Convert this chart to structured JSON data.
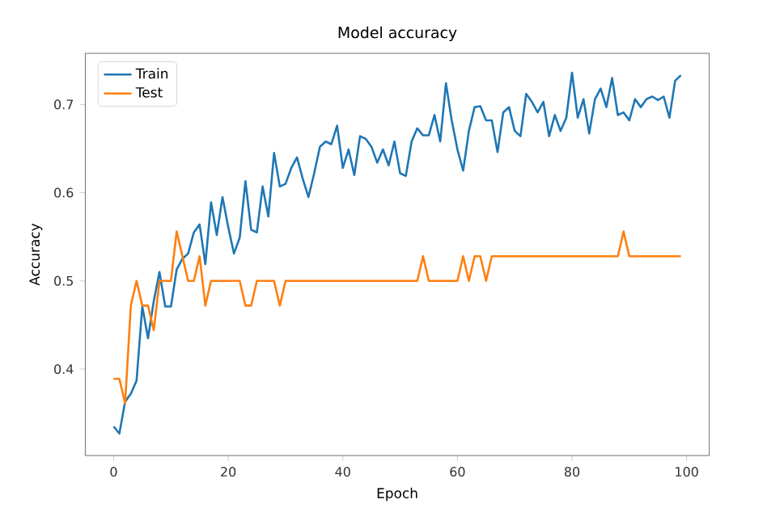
{
  "chart_data": {
    "type": "line",
    "title": "Model accuracy",
    "xlabel": "Epoch",
    "ylabel": "Accuracy",
    "x": [
      0,
      1,
      2,
      3,
      4,
      5,
      6,
      7,
      8,
      9,
      10,
      11,
      12,
      13,
      14,
      15,
      16,
      17,
      18,
      19,
      20,
      21,
      22,
      23,
      24,
      25,
      26,
      27,
      28,
      29,
      30,
      31,
      32,
      33,
      34,
      35,
      36,
      37,
      38,
      39,
      40,
      41,
      42,
      43,
      44,
      45,
      46,
      47,
      48,
      49,
      50,
      51,
      52,
      53,
      54,
      55,
      56,
      57,
      58,
      59,
      60,
      61,
      62,
      63,
      64,
      65,
      66,
      67,
      68,
      69,
      70,
      71,
      72,
      73,
      74,
      75,
      76,
      77,
      78,
      79,
      80,
      81,
      82,
      83,
      84,
      85,
      86,
      87,
      88,
      89,
      90,
      91,
      92,
      93,
      94,
      95,
      96,
      97,
      98,
      99
    ],
    "series": [
      {
        "name": "Train",
        "color": "#1f77b4",
        "values": [
          0.335,
          0.327,
          0.363,
          0.372,
          0.387,
          0.471,
          0.435,
          0.477,
          0.51,
          0.471,
          0.471,
          0.513,
          0.525,
          0.531,
          0.555,
          0.564,
          0.519,
          0.589,
          0.552,
          0.595,
          0.561,
          0.531,
          0.549,
          0.613,
          0.558,
          0.555,
          0.607,
          0.573,
          0.645,
          0.607,
          0.61,
          0.628,
          0.64,
          0.616,
          0.595,
          0.622,
          0.652,
          0.658,
          0.655,
          0.676,
          0.628,
          0.649,
          0.62,
          0.664,
          0.661,
          0.652,
          0.634,
          0.649,
          0.631,
          0.658,
          0.622,
          0.619,
          0.658,
          0.673,
          0.665,
          0.665,
          0.688,
          0.658,
          0.724,
          0.682,
          0.649,
          0.625,
          0.67,
          0.697,
          0.698,
          0.682,
          0.682,
          0.646,
          0.691,
          0.697,
          0.67,
          0.664,
          0.712,
          0.703,
          0.691,
          0.703,
          0.664,
          0.688,
          0.67,
          0.685,
          0.736,
          0.685,
          0.706,
          0.667,
          0.706,
          0.718,
          0.697,
          0.73,
          0.688,
          0.691,
          0.682,
          0.706,
          0.697,
          0.706,
          0.709,
          0.705,
          0.709,
          0.685,
          0.727,
          0.733
        ]
      },
      {
        "name": "Test",
        "color": "#ff7f0e",
        "values": [
          0.389,
          0.389,
          0.361,
          0.472,
          0.5,
          0.472,
          0.472,
          0.444,
          0.5,
          0.5,
          0.5,
          0.556,
          0.528,
          0.5,
          0.5,
          0.528,
          0.472,
          0.5,
          0.5,
          0.5,
          0.5,
          0.5,
          0.5,
          0.472,
          0.472,
          0.5,
          0.5,
          0.5,
          0.5,
          0.472,
          0.5,
          0.5,
          0.5,
          0.5,
          0.5,
          0.5,
          0.5,
          0.5,
          0.5,
          0.5,
          0.5,
          0.5,
          0.5,
          0.5,
          0.5,
          0.5,
          0.5,
          0.5,
          0.5,
          0.5,
          0.5,
          0.5,
          0.5,
          0.5,
          0.528,
          0.5,
          0.5,
          0.5,
          0.5,
          0.5,
          0.5,
          0.528,
          0.5,
          0.528,
          0.528,
          0.5,
          0.528,
          0.528,
          0.528,
          0.528,
          0.528,
          0.528,
          0.528,
          0.528,
          0.528,
          0.528,
          0.528,
          0.528,
          0.528,
          0.528,
          0.528,
          0.528,
          0.528,
          0.528,
          0.528,
          0.528,
          0.528,
          0.528,
          0.528,
          0.556,
          0.528,
          0.528,
          0.528,
          0.528,
          0.528,
          0.528,
          0.528,
          0.528,
          0.528,
          0.528
        ]
      }
    ],
    "xlim": [
      -4.95,
      103.95
    ],
    "ylim": [
      0.302,
      0.758
    ],
    "xticks": [
      0,
      20,
      40,
      60,
      80,
      100
    ],
    "yticks": [
      0.4,
      0.5,
      0.6,
      0.7
    ],
    "legend": "top left",
    "grid": false
  }
}
